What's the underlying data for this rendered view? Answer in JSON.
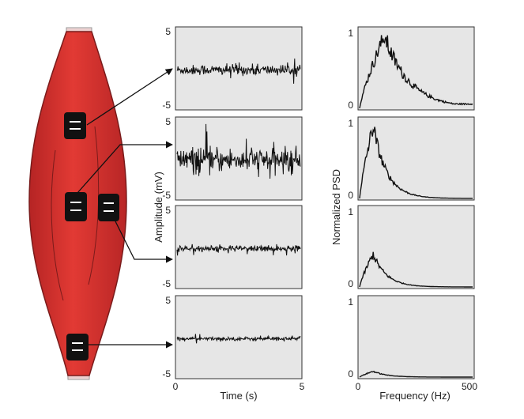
{
  "colors": {
    "muscle_fill": "#d92f2f",
    "muscle_dark": "#8c1f1f",
    "tendon": "#d9b0b0",
    "panel_bg": "#e6e6e6",
    "trace": "#111111",
    "electrode": "#111111"
  },
  "time_panels": {
    "xlabel": "Time (s)",
    "ylabel": "Amplitude (mV)",
    "xlim": [
      0,
      5
    ],
    "ylim": [
      -5,
      5
    ],
    "x_tick_labels": [
      "0",
      "5"
    ],
    "y_tick_labels": [
      "5",
      "-5"
    ],
    "amplitudes": [
      0.55,
      1.3,
      0.35,
      0.2
    ]
  },
  "psd_panels": {
    "xlabel": "Frequency (Hz)",
    "ylabel": "Normalized PSD",
    "xlim": [
      0,
      500
    ],
    "ylim": [
      0,
      1
    ],
    "x_tick_labels": [
      "0",
      "500"
    ],
    "y_tick_labels": [
      "1",
      "0"
    ],
    "peak_levels": [
      1.0,
      1.0,
      0.45,
      0.08
    ]
  },
  "electrodes": [
    {
      "name": "electrode-1",
      "icon": "electrode-pair-icon"
    },
    {
      "name": "electrode-2",
      "icon": "electrode-pair-icon"
    },
    {
      "name": "electrode-3",
      "icon": "electrode-pair-icon"
    },
    {
      "name": "electrode-4",
      "icon": "electrode-pair-icon"
    }
  ]
}
